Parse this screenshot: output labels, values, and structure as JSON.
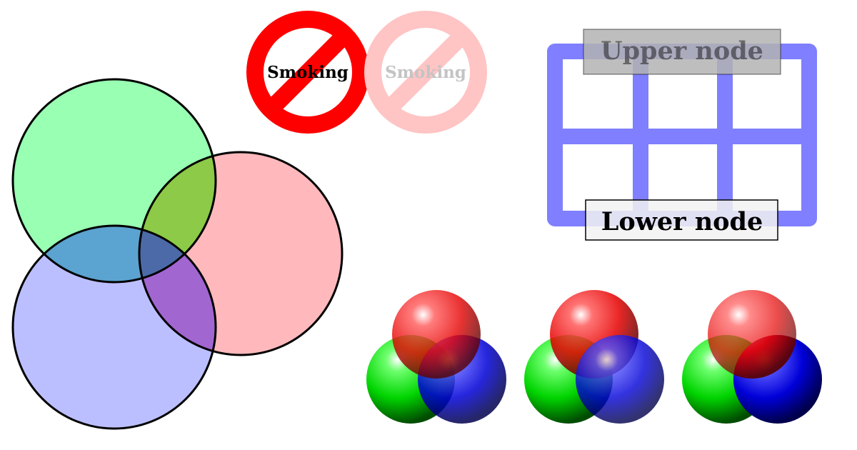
{
  "no_smoking": {
    "sign_text": "Smoking",
    "opaque_color": "#ff0000",
    "faded_color": "#ffc4c4"
  },
  "venn": {
    "colors": {
      "green": "#99ffb3",
      "red": "#ffb9bc",
      "blue": "#bcbfff",
      "green_red_overlap": "#8cca47",
      "green_blue_overlap": "#5ba3d0",
      "red_blue_overlap": "#a266d1",
      "all_overlap": "#4c6aa8",
      "outline": "#000000"
    }
  },
  "grid_panel": {
    "grid_color": "#8080ff",
    "upper_node": {
      "label": "Upper node",
      "fill": "#b3b3b3"
    },
    "lower_node": {
      "label": "Lower node",
      "fill": "#f2f2f2"
    }
  },
  "ball_groups": [
    {
      "layering": "red on top"
    },
    {
      "layering": "blue on top"
    },
    {
      "layering": "mixed"
    }
  ],
  "ball_colors": {
    "red": "#ff0000",
    "green": "#00ff00",
    "blue": "#0000ff"
  }
}
